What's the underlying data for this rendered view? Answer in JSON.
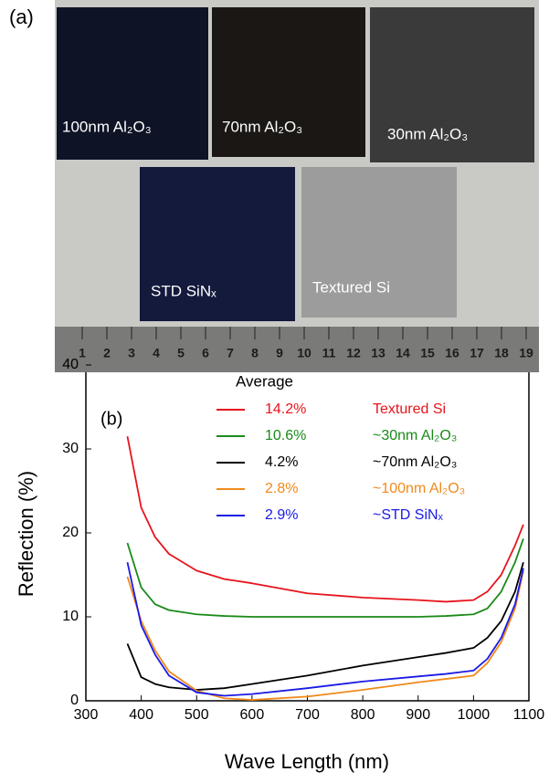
{
  "photo": {
    "label": "(a)",
    "samples": [
      {
        "label": "100nm Al₂O₃",
        "color": "#0e1426"
      },
      {
        "label": "70nm Al₂O₃",
        "color": "#1a1714"
      },
      {
        "label": "30nm Al₂O₃",
        "color": "#3a3a3a"
      },
      {
        "label": "STD SiNₓ",
        "color": "#131a3c"
      },
      {
        "label": "Textured Si",
        "color": "#9c9c9c"
      }
    ],
    "ruler": [
      1,
      2,
      3,
      4,
      5,
      6,
      7,
      8,
      9,
      10,
      11,
      12,
      13,
      14,
      15,
      16,
      17,
      18,
      19
    ]
  },
  "chart_data": {
    "type": "line",
    "label": "(b)",
    "legend_title": "Average",
    "x_label": "Wave Length (nm)",
    "y_label": "Reflection (%)",
    "x": [
      375,
      400,
      425,
      450,
      500,
      550,
      600,
      700,
      800,
      900,
      950,
      1000,
      1025,
      1050,
      1075,
      1090
    ],
    "xlim": [
      300,
      1100
    ],
    "xticks": [
      300,
      400,
      500,
      600,
      700,
      800,
      900,
      1000,
      1100
    ],
    "ylim": [
      0,
      40
    ],
    "yticks": [
      0,
      10,
      20,
      30,
      40
    ],
    "series": [
      {
        "name": "Textured Si",
        "average": "14.2%",
        "color": "#e8141c",
        "values": [
          31.5,
          23,
          19.5,
          17.5,
          15.5,
          14.5,
          14,
          12.8,
          12.3,
          12,
          11.8,
          12,
          13,
          15,
          18.5,
          21
        ]
      },
      {
        "name": "~30nm Al₂O₃",
        "average": "10.6%",
        "color": "#1a8a1a",
        "values": [
          18.8,
          13.5,
          11.5,
          10.8,
          10.3,
          10.1,
          10,
          10,
          10,
          10,
          10.1,
          10.3,
          11,
          13,
          16.5,
          19.3
        ]
      },
      {
        "name": "~70nm Al₂O₃",
        "average": "4.2%",
        "color": "#000000",
        "values": [
          6.8,
          2.8,
          2,
          1.6,
          1.3,
          1.5,
          2,
          3,
          4.2,
          5.2,
          5.7,
          6.3,
          7.5,
          9.5,
          13,
          16.5
        ]
      },
      {
        "name": "~100nm Al₂O₃",
        "average": "2.8%",
        "color": "#f08a1c",
        "values": [
          14.8,
          9.5,
          6,
          3.5,
          1.2,
          0.3,
          0.1,
          0.5,
          1.3,
          2.2,
          2.6,
          3,
          4.5,
          7,
          11,
          15.5
        ]
      },
      {
        "name": "~STD SiNₓ",
        "average": "2.9%",
        "color": "#1a1ae6",
        "values": [
          16.5,
          9,
          5.5,
          3,
          1,
          0.6,
          0.8,
          1.5,
          2.3,
          2.9,
          3.2,
          3.6,
          5,
          7.5,
          11.5,
          15.8
        ]
      }
    ]
  }
}
